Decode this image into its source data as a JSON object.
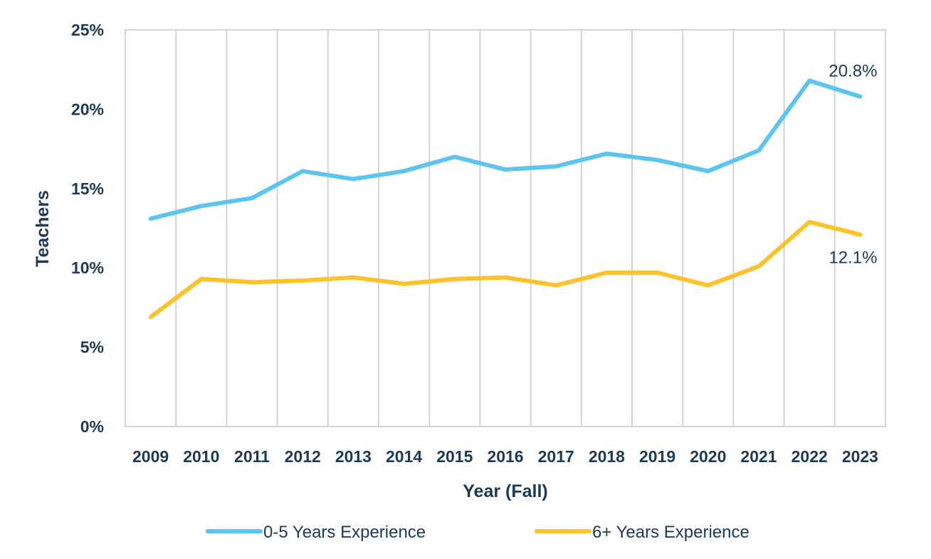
{
  "chart_data": {
    "type": "line",
    "title": "",
    "xlabel": "Year (Fall)",
    "ylabel": "Teachers",
    "categories": [
      "2009",
      "2010",
      "2011",
      "2012",
      "2013",
      "2014",
      "2015",
      "2016",
      "2017",
      "2018",
      "2019",
      "2020",
      "2021",
      "2022",
      "2023"
    ],
    "ylim": [
      0,
      25
    ],
    "yticks": [
      0,
      5,
      10,
      15,
      20,
      25
    ],
    "ytick_labels": [
      "0%",
      "5%",
      "10%",
      "15%",
      "20%",
      "25%"
    ],
    "grid": "vertical",
    "legend_position": "bottom",
    "series": [
      {
        "name": "0-5 Years Experience",
        "color": "#5bc4ef",
        "values": [
          13.1,
          13.9,
          14.4,
          16.1,
          15.6,
          16.1,
          17.0,
          16.2,
          16.4,
          17.2,
          16.8,
          16.1,
          17.4,
          21.8,
          20.8
        ],
        "end_label": "20.8%"
      },
      {
        "name": "6+ Years Experience",
        "color": "#fcc22a",
        "values": [
          6.9,
          9.3,
          9.1,
          9.2,
          9.4,
          9.0,
          9.3,
          9.4,
          8.9,
          9.7,
          9.7,
          8.9,
          10.1,
          12.9,
          12.1
        ],
        "end_label": "12.1%"
      }
    ]
  }
}
